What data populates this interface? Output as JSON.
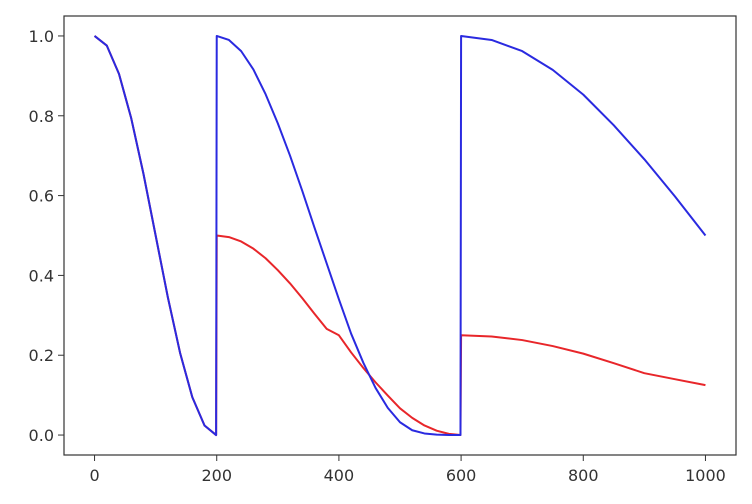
{
  "chart_data": {
    "type": "line",
    "xlim": [
      -50,
      1050
    ],
    "ylim": [
      -0.05,
      1.05
    ],
    "x_ticks": [
      0,
      200,
      400,
      600,
      800,
      1000
    ],
    "y_ticks": [
      0.0,
      0.2,
      0.4,
      0.6,
      0.8,
      1.0
    ],
    "x_tick_labels": [
      "0",
      "200",
      "400",
      "600",
      "800",
      "1000"
    ],
    "y_tick_labels": [
      "0.0",
      "0.2",
      "0.4",
      "0.6",
      "0.8",
      "1.0"
    ],
    "grid": false,
    "legend": "none",
    "series": [
      {
        "color": "#e8262a",
        "x": [
          0,
          20,
          40,
          60,
          80,
          100,
          120,
          140,
          160,
          180,
          199,
          200,
          220,
          240,
          260,
          280,
          300,
          320,
          340,
          360,
          380,
          400,
          420,
          440,
          460,
          480,
          500,
          520,
          540,
          560,
          580,
          599,
          600,
          650,
          700,
          750,
          800,
          850,
          900,
          950,
          1000
        ],
        "y": [
          1.0,
          0.976,
          0.905,
          0.794,
          0.655,
          0.5,
          0.345,
          0.206,
          0.095,
          0.024,
          0.0,
          0.5,
          0.496,
          0.485,
          0.467,
          0.443,
          0.413,
          0.38,
          0.343,
          0.304,
          0.266,
          0.25,
          0.207,
          0.168,
          0.132,
          0.099,
          0.067,
          0.043,
          0.024,
          0.011,
          0.003,
          0.0,
          0.25,
          0.247,
          0.238,
          0.223,
          0.204,
          0.18,
          0.155,
          0.14,
          0.125
        ]
      },
      {
        "color": "#2a2ae0",
        "x": [
          0,
          20,
          40,
          60,
          80,
          100,
          120,
          140,
          160,
          180,
          199,
          200,
          220,
          240,
          260,
          280,
          300,
          320,
          340,
          360,
          380,
          400,
          420,
          440,
          460,
          480,
          500,
          520,
          540,
          560,
          580,
          599,
          600,
          650,
          700,
          750,
          800,
          850,
          900,
          950,
          1000
        ],
        "y": [
          1.0,
          0.976,
          0.905,
          0.794,
          0.655,
          0.5,
          0.345,
          0.206,
          0.095,
          0.024,
          0.0,
          1.0,
          0.99,
          0.962,
          0.916,
          0.854,
          0.781,
          0.7,
          0.612,
          0.52,
          0.43,
          0.34,
          0.254,
          0.181,
          0.118,
          0.068,
          0.032,
          0.012,
          0.004,
          0.001,
          0.0,
          0.0,
          1.0,
          0.99,
          0.962,
          0.915,
          0.853,
          0.776,
          0.691,
          0.598,
          0.5
        ]
      }
    ]
  },
  "style": {
    "axis_color": "#333333",
    "tick_label_color": "#333333"
  }
}
